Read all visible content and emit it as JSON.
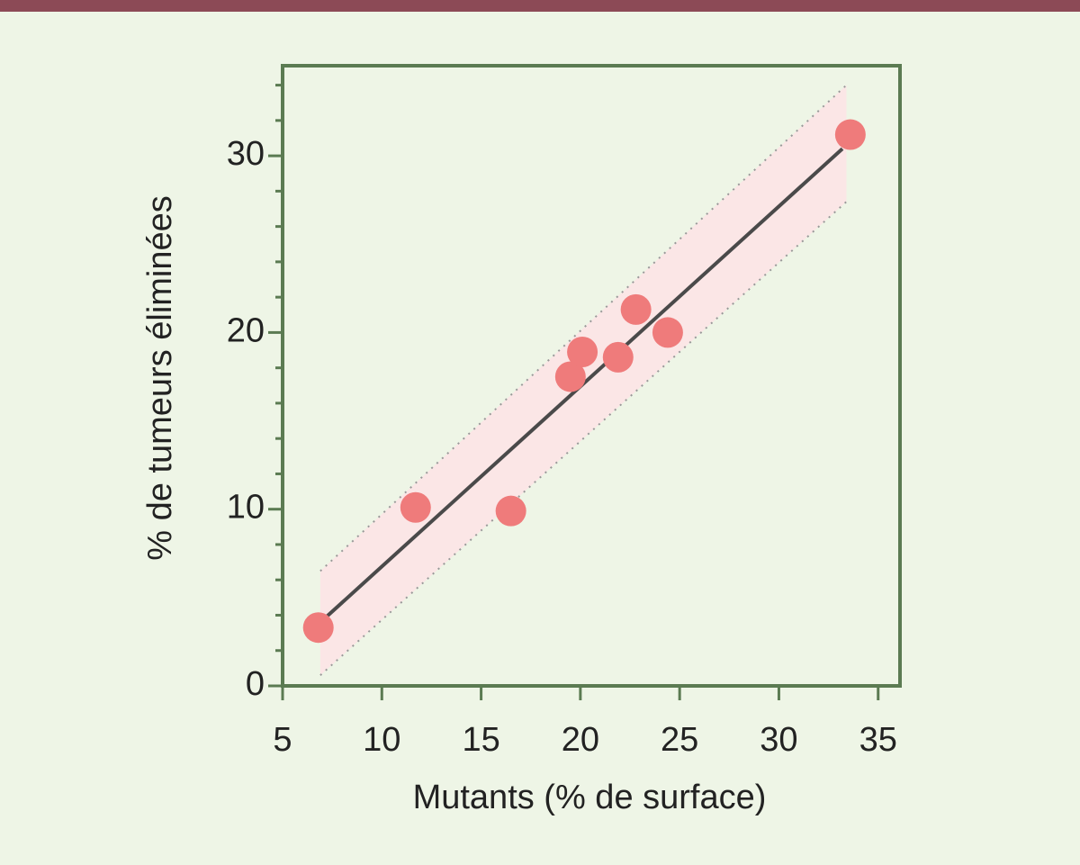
{
  "chart_data": {
    "type": "scatter",
    "x_label": "Mutants (% de surface)",
    "y_label": "% de tumeurs éliminées",
    "x": [
      6.8,
      11.7,
      16.5,
      19.5,
      20.1,
      21.9,
      22.8,
      24.4,
      33.6
    ],
    "values": [
      3.3,
      10.1,
      9.9,
      17.5,
      18.9,
      18.6,
      21.3,
      20.0,
      31.2
    ],
    "color": "#ef7b7b",
    "fit_line": {
      "x": [
        7.1,
        33.2
      ],
      "y": [
        3.8,
        30.4
      ],
      "color": "#4a4a4a"
    },
    "band": {
      "x": [
        6.9,
        33.4
      ],
      "upper": [
        6.5,
        34.0
      ],
      "lower": [
        0.6,
        27.4
      ],
      "color": "#fbe6e6"
    },
    "xlim": [
      5,
      36.1
    ],
    "ylim": [
      0,
      35.1
    ],
    "xticks": [
      5,
      10,
      15,
      20,
      25,
      30,
      35
    ],
    "yticks": [
      0,
      10,
      20,
      30
    ],
    "yticks_minor": [
      2,
      4,
      6,
      8,
      12,
      14,
      16,
      18,
      22,
      24,
      26,
      28,
      32,
      34
    ],
    "grid": false
  }
}
